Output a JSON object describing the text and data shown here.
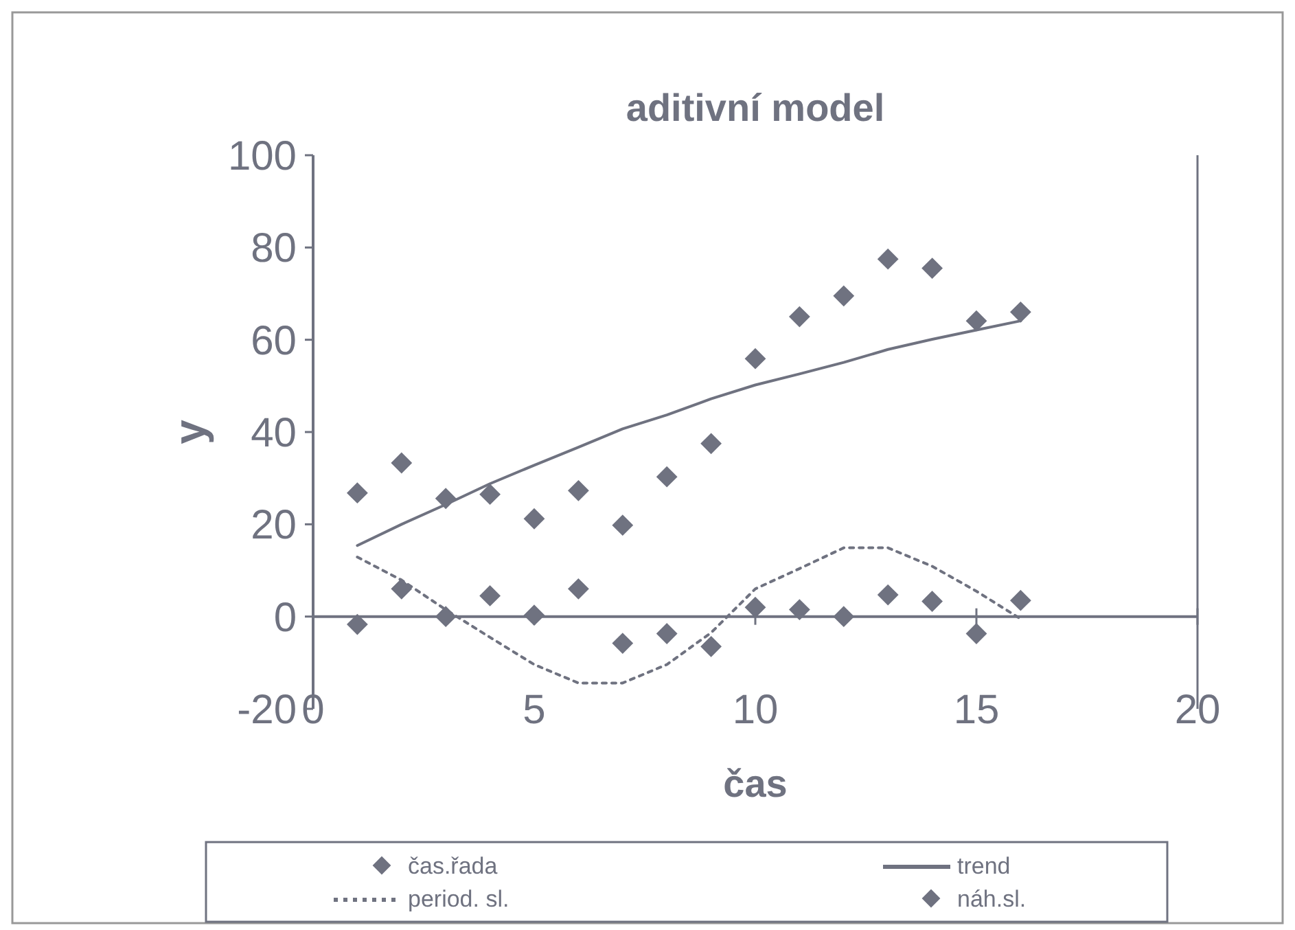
{
  "chart_data": {
    "type": "scatter",
    "title": "aditivní model",
    "xlabel": "čas",
    "ylabel": "y",
    "x": [
      1,
      2,
      3,
      4,
      5,
      6,
      7,
      8,
      9,
      10,
      11,
      12,
      13,
      14,
      15,
      16
    ],
    "xlim": [
      0,
      20
    ],
    "xticks": [
      0,
      5,
      10,
      15,
      20
    ],
    "ylim": [
      -20,
      100
    ],
    "yticks": [
      -20,
      0,
      20,
      40,
      60,
      80,
      100
    ],
    "legend": "bottom",
    "marker": "diamond",
    "series": [
      {
        "name": "čas.řada",
        "color": "#6f7280",
        "values": [
          26.8,
          33.3,
          25.6,
          26.5,
          21.2,
          27.3,
          19.8,
          30.3,
          37.5,
          55.9,
          65.0,
          69.5,
          77.5,
          75.5,
          64.1,
          66.0
        ]
      },
      {
        "name": "trend",
        "type": "line",
        "marker": "none",
        "color": "#6f7280",
        "line_style": "solid",
        "values": [
          15.4,
          20.0,
          24.3,
          28.8,
          32.8,
          36.7,
          40.7,
          43.7,
          47.2,
          50.2,
          52.6,
          55.1,
          57.9,
          60.1,
          62.1,
          64.1
        ]
      },
      {
        "name": "period. sl.",
        "type": "line",
        "marker": "none",
        "color": "#6f7280",
        "line_style": "dotted",
        "values": [
          12.9,
          7.9,
          1.5,
          -4.5,
          -10.4,
          -14.4,
          -14.4,
          -10.4,
          -3.5,
          6.0,
          10.4,
          14.9,
          14.9,
          10.9,
          5.5,
          -0.5
        ]
      },
      {
        "name": "náh.sl.",
        "color": "#6f7280",
        "values": [
          -1.7,
          6.0,
          0.0,
          4.5,
          0.3,
          6.0,
          -5.8,
          -3.7,
          -6.5,
          2.0,
          1.5,
          0.0,
          4.7,
          3.3,
          -3.7,
          3.5
        ]
      }
    ]
  }
}
